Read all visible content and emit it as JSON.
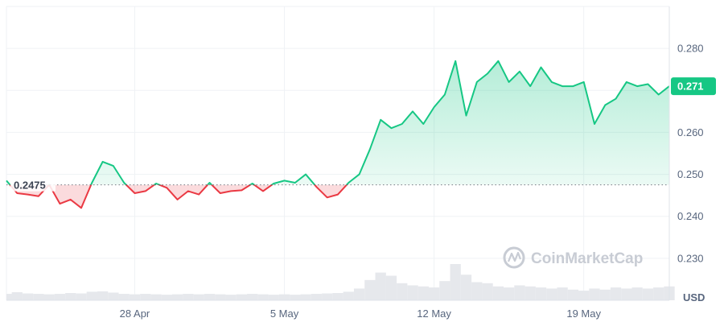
{
  "brand": {
    "watermark": "CoinMarketCap",
    "logo_icon": "coinmarketcap-logo-icon"
  },
  "colors": {
    "up": "#16c784",
    "down": "#ea3943",
    "grid": "#eff2f5",
    "axis_text": "#58667e",
    "volume": "#e6e8ec"
  },
  "chart_data": {
    "type": "line",
    "baseline": {
      "value": 0.2475,
      "label": "0.2475",
      "style": "dotted"
    },
    "last_price": {
      "value": 0.271,
      "label": "0.271"
    },
    "currency_label": "USD",
    "y_axis": {
      "position": "right",
      "range": [
        0.22,
        0.29
      ],
      "ticks": [
        0.23,
        0.24,
        0.25,
        0.26,
        0.27,
        0.28
      ],
      "tick_labels": [
        "0.230",
        "0.240",
        "0.250",
        "0.260",
        "0.270",
        "0.280"
      ]
    },
    "x_axis": {
      "range": [
        "2024-04-22",
        "2024-05-23"
      ],
      "ticks": [
        "2024-04-28",
        "2024-05-05",
        "2024-05-12",
        "2024-05-19"
      ],
      "tick_labels": [
        "28 Apr",
        "5 May",
        "12 May",
        "19 May"
      ]
    },
    "grid": true,
    "series": [
      {
        "x": [
          "2024-04-22T00:00",
          "2024-04-22T12:00",
          "2024-04-23T00:00",
          "2024-04-23T12:00",
          "2024-04-24T00:00",
          "2024-04-24T12:00",
          "2024-04-25T00:00",
          "2024-04-25T12:00",
          "2024-04-26T00:00",
          "2024-04-26T12:00",
          "2024-04-27T00:00",
          "2024-04-27T12:00",
          "2024-04-28T00:00",
          "2024-04-28T12:00",
          "2024-04-29T00:00",
          "2024-04-29T12:00",
          "2024-04-30T00:00",
          "2024-04-30T12:00",
          "2024-05-01T00:00",
          "2024-05-01T12:00",
          "2024-05-02T00:00",
          "2024-05-02T12:00",
          "2024-05-03T00:00",
          "2024-05-03T12:00",
          "2024-05-04T00:00",
          "2024-05-04T12:00",
          "2024-05-05T00:00",
          "2024-05-05T12:00",
          "2024-05-06T00:00",
          "2024-05-06T12:00",
          "2024-05-07T00:00",
          "2024-05-07T12:00",
          "2024-05-08T00:00",
          "2024-05-08T12:00",
          "2024-05-09T00:00",
          "2024-05-09T12:00",
          "2024-05-10T00:00",
          "2024-05-10T12:00",
          "2024-05-11T00:00",
          "2024-05-11T12:00",
          "2024-05-12T00:00",
          "2024-05-12T12:00",
          "2024-05-13T00:00",
          "2024-05-13T12:00",
          "2024-05-14T00:00",
          "2024-05-14T12:00",
          "2024-05-15T00:00",
          "2024-05-15T12:00",
          "2024-05-16T00:00",
          "2024-05-16T12:00",
          "2024-05-17T00:00",
          "2024-05-17T12:00",
          "2024-05-18T00:00",
          "2024-05-18T12:00",
          "2024-05-19T00:00",
          "2024-05-19T12:00",
          "2024-05-20T00:00",
          "2024-05-20T12:00",
          "2024-05-21T00:00",
          "2024-05-21T12:00",
          "2024-05-22T00:00",
          "2024-05-22T12:00",
          "2024-05-23T00:00"
        ],
        "values": [
          0.2485,
          0.2455,
          0.2452,
          0.2448,
          0.2475,
          0.243,
          0.244,
          0.242,
          0.248,
          0.253,
          0.252,
          0.248,
          0.2455,
          0.246,
          0.2478,
          0.2468,
          0.244,
          0.246,
          0.2452,
          0.248,
          0.2455,
          0.246,
          0.2462,
          0.2478,
          0.246,
          0.2478,
          0.2485,
          0.248,
          0.25,
          0.247,
          0.2445,
          0.2452,
          0.248,
          0.25,
          0.256,
          0.263,
          0.261,
          0.262,
          0.265,
          0.262,
          0.266,
          0.269,
          0.277,
          0.264,
          0.272,
          0.274,
          0.277,
          0.272,
          0.2745,
          0.271,
          0.2755,
          0.272,
          0.271,
          0.271,
          0.272,
          0.262,
          0.2665,
          0.268,
          0.272,
          0.271,
          0.2715,
          0.269,
          0.271
        ]
      }
    ],
    "volume": {
      "values": [
        0.3,
        0.38,
        0.32,
        0.3,
        0.28,
        0.3,
        0.34,
        0.32,
        0.4,
        0.42,
        0.36,
        0.3,
        0.28,
        0.3,
        0.28,
        0.26,
        0.28,
        0.3,
        0.28,
        0.3,
        0.28,
        0.26,
        0.28,
        0.3,
        0.28,
        0.26,
        0.28,
        0.26,
        0.28,
        0.3,
        0.32,
        0.34,
        0.4,
        0.55,
        0.95,
        1.3,
        1.15,
        0.8,
        0.7,
        0.65,
        0.6,
        0.9,
        1.7,
        1.2,
        0.85,
        0.8,
        0.65,
        0.6,
        0.7,
        0.65,
        0.6,
        0.55,
        0.6,
        0.5,
        0.45,
        0.55,
        0.5,
        0.6,
        0.55,
        0.6,
        0.55,
        0.6,
        0.65
      ]
    }
  }
}
